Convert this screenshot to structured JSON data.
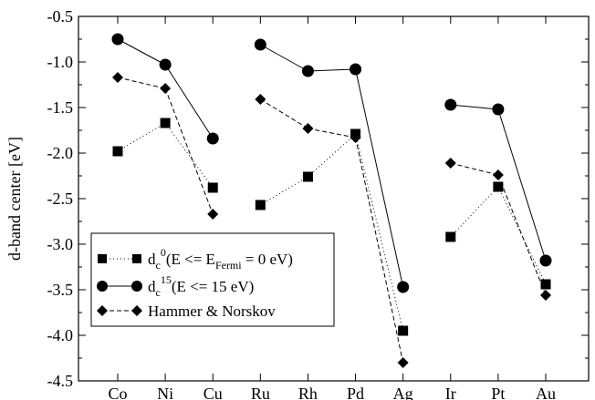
{
  "chart_data": {
    "type": "line",
    "title": "",
    "xlabel": "",
    "ylabel": "d-band center [eV]",
    "ylim": [
      -4.5,
      -0.5
    ],
    "yticks": [
      -4.5,
      -4.0,
      -3.5,
      -3.0,
      -2.5,
      -2.0,
      -1.5,
      -1.0,
      -0.5
    ],
    "ytick_labels": [
      "-4.5",
      "-4.0",
      "-3.5",
      "-3.0",
      "-2.5",
      "-2.0",
      "-1.5",
      "-1.0",
      "-0.5"
    ],
    "categories": [
      "Co",
      "Ni",
      "Cu",
      "Ru",
      "Rh",
      "Pd",
      "Ag",
      "Ir",
      "Pt",
      "Au"
    ],
    "groups": [
      [
        0,
        1,
        2
      ],
      [
        3,
        4,
        5,
        6
      ],
      [
        7,
        8,
        9
      ]
    ],
    "grid": false,
    "legend_position": "bottom-left",
    "series": [
      {
        "name_main": "d",
        "name_sub": "c",
        "name_sup": "0",
        "name_paren": "(E <= E",
        "name_paren_sub": "Fermi",
        "name_tail": " = 0 eV)",
        "marker": "square",
        "line": "dotted",
        "values": [
          -1.98,
          -1.67,
          -2.38,
          -2.57,
          -2.26,
          -1.79,
          -3.95,
          -2.92,
          -2.37,
          -3.44
        ]
      },
      {
        "name_main": "d",
        "name_sub": "c",
        "name_sup": "15",
        "name_paren": "(E <= 15 eV)",
        "marker": "circle",
        "line": "solid",
        "values": [
          -0.75,
          -1.03,
          -1.84,
          -0.81,
          -1.1,
          -1.08,
          -3.47,
          -1.47,
          -1.52,
          -3.18
        ]
      },
      {
        "name": "Hammer & Norskov",
        "marker": "diamond",
        "line": "dashed",
        "values": [
          -1.17,
          -1.29,
          -2.67,
          -1.41,
          -1.73,
          -1.83,
          -4.3,
          -2.11,
          -2.24,
          -3.56
        ]
      }
    ]
  }
}
